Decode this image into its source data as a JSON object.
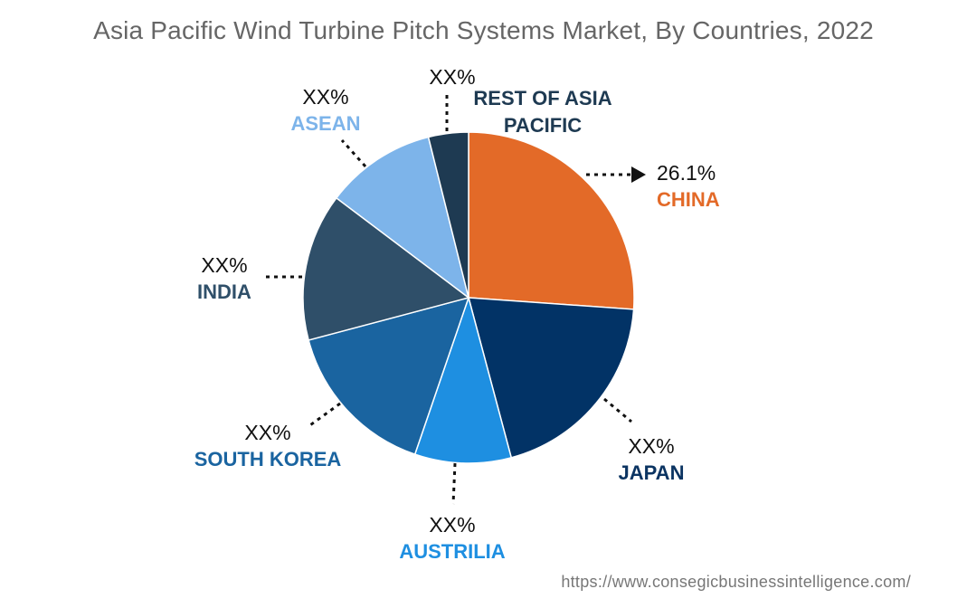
{
  "chart_data": {
    "type": "pie",
    "title": "Asia Pacific Wind Turbine Pitch Systems Market, By Countries, 2022",
    "start_angle": "12 o'clock, clockwise",
    "slices": [
      {
        "label": "CHINA",
        "value_label": "26.1%",
        "value": 26.1,
        "color": "#E36A28"
      },
      {
        "label": "JAPAN",
        "value_label": "XX%",
        "value": 19.7,
        "color": "#023366"
      },
      {
        "label": "AUSTRILIA",
        "value_label": "XX%",
        "value": 9.4,
        "color": "#1E8FE1"
      },
      {
        "label": "SOUTH KOREA",
        "value_label": "XX%",
        "value": 15.6,
        "color": "#1A64A0"
      },
      {
        "label": "INDIA",
        "value_label": "XX%",
        "value": 14.4,
        "color": "#2F4F69"
      },
      {
        "label": "ASEAN",
        "value_label": "XX%",
        "value": 10.8,
        "color": "#7DB4EA"
      },
      {
        "label": "REST OF ASIA PACIFIC",
        "value_label": "XX%",
        "value": 3.9,
        "color": "#1E3A52"
      }
    ],
    "legend": "none (inline callout labels)"
  },
  "labels": {
    "china": {
      "pct": "26.1%",
      "name": "CHINA",
      "color": "#E36A28"
    },
    "japan": {
      "pct": "XX%",
      "name": "JAPAN",
      "color": "#0B3462"
    },
    "australia": {
      "pct": "XX%",
      "name": "AUSTRILIA",
      "color": "#1E8FE1"
    },
    "south_korea": {
      "pct": "XX%",
      "name": "SOUTH KOREA",
      "color": "#1A64A0"
    },
    "india": {
      "pct": "XX%",
      "name": "INDIA",
      "color": "#2F4F69"
    },
    "asean": {
      "pct": "XX%",
      "name": "ASEAN",
      "color": "#7DB4EA"
    },
    "rest": {
      "pct": "XX%",
      "name_line1": "REST OF ASIA",
      "name_line2": "PACIFIC",
      "color": "#1E3A52"
    }
  },
  "footer": {
    "url": "https://www.consegicbusinessintelligence.com/"
  }
}
